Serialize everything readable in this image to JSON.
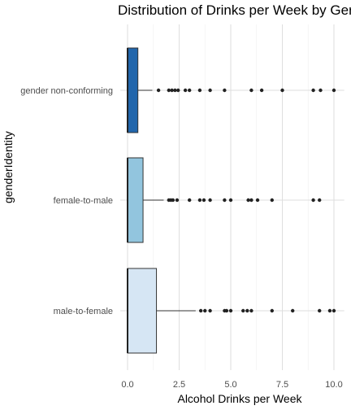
{
  "chart_data": {
    "type": "boxplot",
    "title": "Distribution of Drinks per Week by Ger",
    "xlabel": "Alcohol Drinks per Week",
    "ylabel": "genderIdentity",
    "xlim": [
      -0.35,
      10.5
    ],
    "x_ticks": [
      0.0,
      2.5,
      5.0,
      7.5,
      10.0
    ],
    "x_tick_labels": [
      "0.0",
      "2.5",
      "5.0",
      "7.5",
      "10.0"
    ],
    "grid": true,
    "categories": [
      "gender non-conforming",
      "female-to-male",
      "male-to-female"
    ],
    "boxes": [
      {
        "category": "gender non-conforming",
        "color": "#2166ac",
        "min": 0,
        "q1": 0,
        "median": 0,
        "q3": 0.5,
        "whisker_high": 1.2,
        "outliers": [
          1.5,
          2.0,
          2.15,
          2.3,
          2.45,
          2.8,
          3.0,
          3.5,
          4.0,
          4.7,
          6.0,
          6.5,
          7.5,
          9.0,
          9.35,
          10.0
        ]
      },
      {
        "category": "female-to-male",
        "color": "#92c5de",
        "min": 0,
        "q1": 0,
        "median": 0,
        "q3": 0.75,
        "whisker_high": 1.75,
        "outliers": [
          2.0,
          2.1,
          2.2,
          2.4,
          3.0,
          3.5,
          3.7,
          4.0,
          4.7,
          5.0,
          5.85,
          6.0,
          6.3,
          7.0,
          9.0,
          9.3
        ]
      },
      {
        "category": "male-to-female",
        "color": "#d6e6f4",
        "min": 0,
        "q1": 0,
        "median": 0,
        "q3": 1.4,
        "whisker_high": 3.3,
        "outliers": [
          3.55,
          3.75,
          4.0,
          4.7,
          4.8,
          5.0,
          5.6,
          5.8,
          6.0,
          7.0,
          8.0,
          9.3,
          9.8,
          10.0
        ]
      }
    ]
  }
}
